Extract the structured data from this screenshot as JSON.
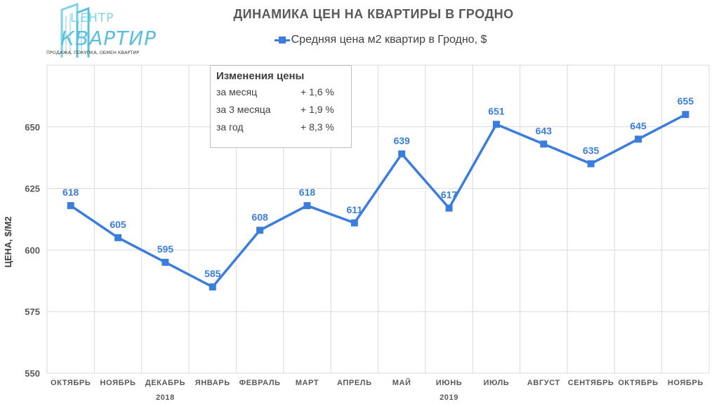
{
  "logo": {
    "line1": "ЦЕНТР",
    "line2": "КВАРТИР",
    "tagline": "ПРОДАЖА, ПОКУПКА, ОБМЕН КВАРТИР"
  },
  "info_box": {
    "title": "Изменения цены",
    "rows": [
      {
        "label": "за месяц",
        "value": "+ 1,6 %"
      },
      {
        "label": "за 3 месяца",
        "value": "+ 1,9 %"
      },
      {
        "label": "за год",
        "value": "+ 8,3 %"
      }
    ]
  },
  "colors": {
    "series": "#3b7ddd",
    "grid": "#d9d9d9",
    "text": "#595959"
  },
  "chart_data": {
    "type": "line",
    "title": "ДИНАМИКА ЦЕН НА КВАРТИРЫ В ГРОДНО",
    "ylabel": "ЦЕНА, $/М2",
    "xlabel": "",
    "ylim": [
      550,
      675
    ],
    "yticks": [
      550,
      575,
      600,
      625,
      650
    ],
    "grid": true,
    "legend_position": "top",
    "categories": [
      "ОКТЯБРЬ",
      "НОЯБРЬ",
      "ДЕКАБРЬ",
      "ЯНВАРЬ",
      "ФЕВРАЛЬ",
      "МАРТ",
      "АПРЕЛЬ",
      "МАЙ",
      "ИЮНЬ",
      "ИЮЛЬ",
      "АВГУСТ",
      "СЕНТЯБРЬ",
      "ОКТЯБРЬ",
      "НОЯБРЬ"
    ],
    "year_labels": [
      {
        "text": "2018",
        "category_index": 2
      },
      {
        "text": "2019",
        "category_index": 8
      }
    ],
    "series": [
      {
        "name": "Средняя цена м2 квартир в Гродно, $",
        "values": [
          618,
          605,
          595,
          585,
          608,
          618,
          611,
          639,
          617,
          651,
          643,
          635,
          645,
          655
        ]
      }
    ]
  }
}
